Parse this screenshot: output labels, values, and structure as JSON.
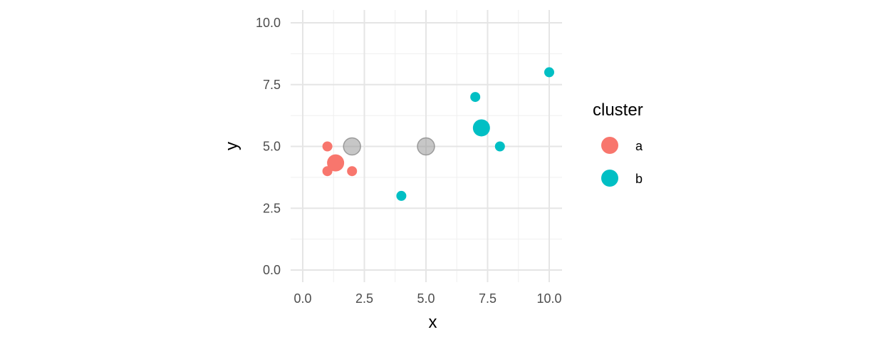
{
  "chart_data": {
    "type": "scatter",
    "xlabel": "x",
    "ylabel": "y",
    "xlim": [
      0,
      10
    ],
    "ylim": [
      0,
      10
    ],
    "x_ticks": [
      "0.0",
      "2.5",
      "5.0",
      "7.5",
      "10.0"
    ],
    "y_ticks": [
      "0.0",
      "2.5",
      "5.0",
      "7.5",
      "10.0"
    ],
    "grid": true,
    "legend_position": "right",
    "legend": {
      "title": "cluster",
      "items": [
        {
          "label": "a",
          "color": "#F8766D"
        },
        {
          "label": "b",
          "color": "#00BFC4"
        }
      ]
    },
    "series": [
      {
        "name": "a",
        "color": "#F8766D",
        "points": [
          {
            "x": 1,
            "y": 5
          },
          {
            "x": 1,
            "y": 4
          },
          {
            "x": 2,
            "y": 4
          }
        ]
      },
      {
        "name": "b",
        "color": "#00BFC4",
        "points": [
          {
            "x": 4,
            "y": 3
          },
          {
            "x": 7,
            "y": 7
          },
          {
            "x": 8,
            "y": 5
          },
          {
            "x": 10,
            "y": 8
          }
        ]
      }
    ],
    "centroids": [
      {
        "cluster": "a",
        "x": 1.333,
        "y": 4.333,
        "color": "#F8766D"
      },
      {
        "cluster": "b",
        "x": 7.25,
        "y": 5.75,
        "color": "#00BFC4"
      }
    ],
    "initial_centers": [
      {
        "x": 2,
        "y": 5,
        "color": "#999999"
      },
      {
        "x": 5,
        "y": 5,
        "color": "#999999"
      }
    ]
  }
}
